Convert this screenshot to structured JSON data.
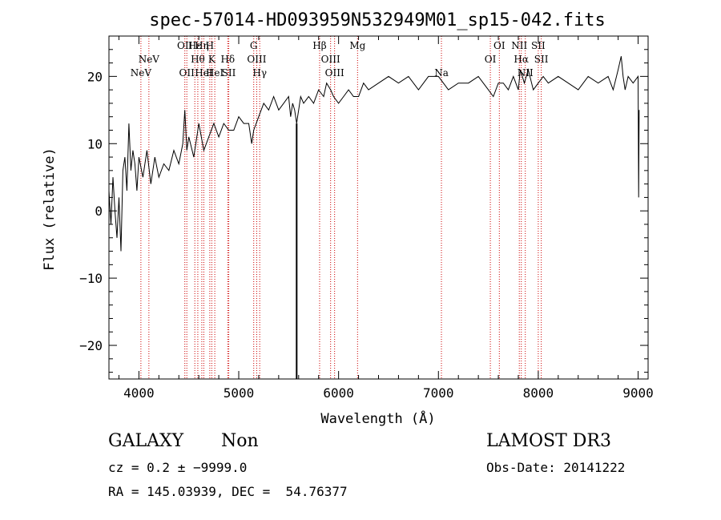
{
  "chart_data": {
    "type": "line",
    "title": "spec-57014-HD093959N532949M01_sp15-042.fits",
    "xlabel": "Wavelength (Å)",
    "ylabel": "Flux (relative)",
    "xlim": [
      3700,
      9100
    ],
    "ylim": [
      -25,
      26
    ],
    "x_ticks": [
      4000,
      5000,
      6000,
      7000,
      8000,
      9000
    ],
    "y_ticks": [
      -20,
      -10,
      0,
      10,
      20
    ],
    "x_tick_labels": [
      "4000",
      "5000",
      "6000",
      "7000",
      "8000",
      "9000"
    ],
    "y_tick_labels": [
      "−20",
      "−10",
      "0",
      "10",
      "20"
    ],
    "series": [
      {
        "name": "spectrum",
        "x": [
          3700,
          3720,
          3740,
          3760,
          3780,
          3800,
          3820,
          3840,
          3860,
          3880,
          3900,
          3920,
          3940,
          3960,
          3980,
          4000,
          4040,
          4080,
          4120,
          4160,
          4200,
          4250,
          4300,
          4350,
          4400,
          4440,
          4460,
          4480,
          4500,
          4550,
          4600,
          4650,
          4700,
          4750,
          4800,
          4850,
          4900,
          4950,
          5000,
          5050,
          5100,
          5130,
          5150,
          5200,
          5250,
          5300,
          5350,
          5400,
          5450,
          5500,
          5520,
          5540,
          5560,
          5580,
          5590,
          5600,
          5620,
          5650,
          5700,
          5750,
          5800,
          5850,
          5880,
          5920,
          5950,
          6000,
          6050,
          6100,
          6150,
          6200,
          6250,
          6300,
          6400,
          6500,
          6600,
          6700,
          6800,
          6900,
          7000,
          7050,
          7100,
          7200,
          7300,
          7400,
          7500,
          7550,
          7600,
          7650,
          7700,
          7750,
          7800,
          7820,
          7860,
          7900,
          7950,
          8000,
          8050,
          8100,
          8200,
          8300,
          8400,
          8500,
          8600,
          8700,
          8750,
          8800,
          8830,
          8850,
          8870,
          8900,
          8950,
          9000,
          9005,
          9010
        ],
        "y": [
          3,
          -2,
          5,
          0,
          -4,
          2,
          -6,
          6,
          8,
          3,
          13,
          6,
          9,
          7,
          3,
          8,
          5,
          9,
          4,
          8,
          5,
          7,
          6,
          9,
          7,
          10,
          15,
          9,
          11,
          8,
          13,
          9,
          11,
          13,
          11,
          13,
          12,
          12,
          14,
          13,
          13,
          10,
          12,
          14,
          16,
          15,
          17,
          15,
          16,
          17,
          14,
          16,
          15,
          13,
          14,
          15,
          17,
          16,
          17,
          16,
          18,
          17,
          19,
          18,
          17,
          16,
          17,
          18,
          17,
          17,
          19,
          18,
          19,
          20,
          19,
          20,
          18,
          20,
          20,
          19,
          18,
          19,
          19,
          20,
          18,
          17,
          19,
          19,
          18,
          20,
          18,
          21,
          19,
          21,
          18,
          19,
          20,
          19,
          20,
          19,
          18,
          20,
          19,
          20,
          18,
          21,
          23,
          20,
          18,
          20,
          19,
          20,
          2,
          15
        ]
      }
    ],
    "cutoff_line": {
      "x": 5580,
      "y_from": -25,
      "y_to": 13
    },
    "line_markers": [
      {
        "x": 4020,
        "label": "NeV",
        "row": 2
      },
      {
        "x": 4100,
        "label": "NeV",
        "row": 1
      },
      {
        "x": 4460,
        "label": "OII",
        "row": 0
      },
      {
        "x": 4480,
        "label": "OII",
        "row": 2
      },
      {
        "x": 4560,
        "label": "Hε",
        "row": 0
      },
      {
        "x": 4590,
        "label": "Hθ",
        "row": 1
      },
      {
        "x": 4630,
        "label": "Hη",
        "row": 0
      },
      {
        "x": 4650,
        "label": "HeI",
        "row": 2
      },
      {
        "x": 4710,
        "label": "H",
        "row": 0
      },
      {
        "x": 4730,
        "label": "K",
        "row": 1
      },
      {
        "x": 4760,
        "label": "HeI",
        "row": 2
      },
      {
        "x": 4890,
        "label": "Hδ",
        "row": 1
      },
      {
        "x": 4900,
        "label": "SII",
        "row": 2
      },
      {
        "x": 5150,
        "label": "G",
        "row": 0
      },
      {
        "x": 5180,
        "label": "OIII",
        "row": 1
      },
      {
        "x": 5210,
        "label": "Hγ",
        "row": 2
      },
      {
        "x": 5810,
        "label": "Hβ",
        "row": 0
      },
      {
        "x": 5920,
        "label": "OIII",
        "row": 1
      },
      {
        "x": 5960,
        "label": "OIII",
        "row": 2
      },
      {
        "x": 6190,
        "label": "Mg",
        "row": 0
      },
      {
        "x": 7030,
        "label": "Na",
        "row": 2
      },
      {
        "x": 7520,
        "label": "OI",
        "row": 1
      },
      {
        "x": 7610,
        "label": "OI",
        "row": 0
      },
      {
        "x": 7810,
        "label": "NII",
        "row": 0
      },
      {
        "x": 7830,
        "label": "Hα",
        "row": 1
      },
      {
        "x": 7870,
        "label": "NII",
        "row": 2
      },
      {
        "x": 8000,
        "label": "SII",
        "row": 0
      },
      {
        "x": 8030,
        "label": "SII",
        "row": 1
      }
    ]
  },
  "info": {
    "object_class": "GALAXY",
    "subclass": "Non",
    "survey": "LAMOST DR3",
    "cz_line": "cz = 0.2 ± −9999.0",
    "obs_date_line": "Obs-Date: 20141222",
    "coords_line": "RA = 145.03939, DEC =  54.76377"
  },
  "colors": {
    "spectrum": "#000000",
    "marker_line": "#cc0000",
    "axes": "#000000"
  }
}
